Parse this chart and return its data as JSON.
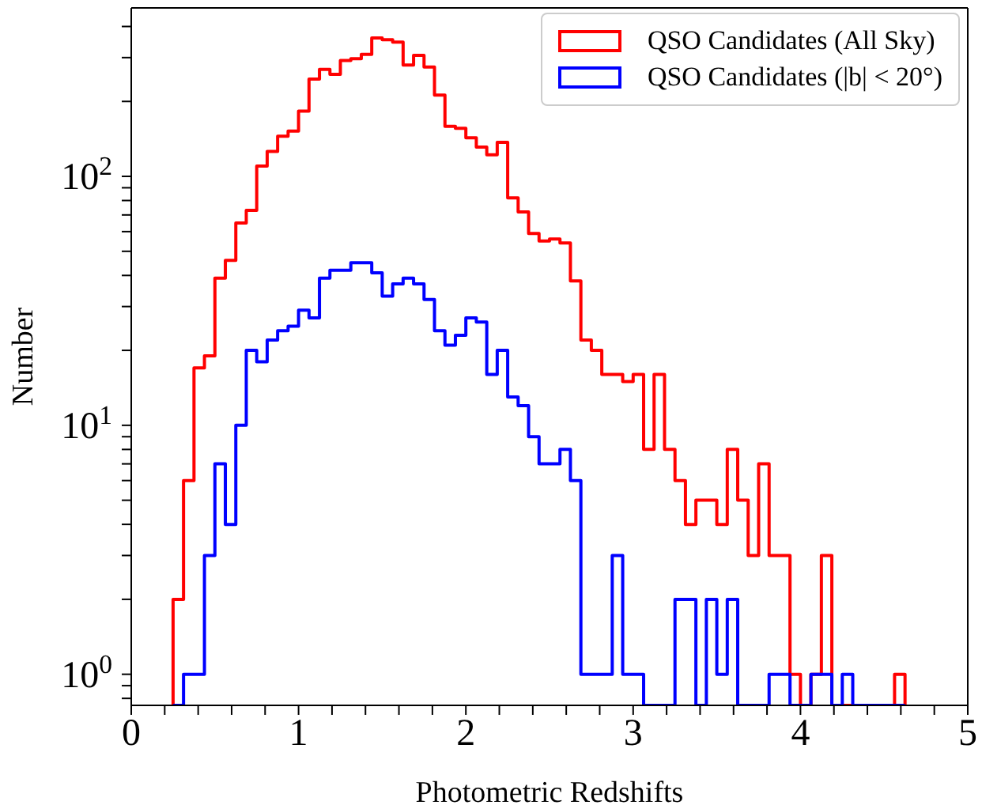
{
  "chart_data": {
    "type": "histogram",
    "xlabel": "Photometric Redshifts",
    "ylabel": "Number",
    "log": "y",
    "bins": [
      0.25,
      0.3125,
      0.375,
      0.4375,
      0.5,
      0.5625,
      0.625,
      0.6875,
      0.75,
      0.8125,
      0.875,
      0.9375,
      1.0,
      1.0625,
      1.125,
      1.1875,
      1.25,
      1.3125,
      1.375,
      1.4375,
      1.5,
      1.5625,
      1.625,
      1.6875,
      1.75,
      1.8125,
      1.875,
      1.9375,
      2.0,
      2.0625,
      2.125,
      2.1875,
      2.25,
      2.3125,
      2.375,
      2.4375,
      2.5,
      2.5625,
      2.625,
      2.6875,
      2.75,
      2.8125,
      2.875,
      2.9375,
      3.0,
      3.0625,
      3.125,
      3.1875,
      3.25,
      3.3125,
      3.375,
      3.4375,
      3.5,
      3.5625,
      3.625,
      3.6875,
      3.75,
      3.8125,
      3.875,
      3.9375,
      4.0,
      4.0625,
      4.125,
      4.1875,
      4.25,
      4.3125,
      4.375,
      4.4375,
      4.5,
      4.5625,
      4.625
    ],
    "series": [
      {
        "name": "QSO Candidates (All Sky)",
        "color": "#ff0000",
        "values": [
          2,
          6,
          17,
          19,
          39,
          46,
          65,
          73,
          110,
          126,
          145,
          152,
          183,
          246,
          269,
          257,
          292,
          297,
          309,
          360,
          354,
          346,
          280,
          306,
          275,
          212,
          159,
          156,
          143,
          131,
          122,
          137,
          82,
          72,
          59,
          55,
          56,
          54,
          38,
          22,
          20,
          16,
          16,
          15,
          16,
          8,
          16,
          8,
          6,
          4,
          5,
          5,
          4,
          8,
          5,
          3,
          7,
          3,
          3,
          1,
          null,
          1,
          3,
          null,
          null,
          null,
          null,
          null,
          null,
          1
        ]
      },
      {
        "name": "QSO Candidates (|b| < 20°)",
        "color": "#0000ff",
        "values": [
          null,
          1,
          1,
          3,
          7,
          4,
          10,
          20,
          18,
          22,
          24,
          25,
          29,
          27,
          39,
          42,
          42,
          45,
          45,
          41,
          33,
          37,
          39,
          37,
          32,
          24,
          21,
          23,
          27,
          26,
          16,
          20,
          13,
          12,
          9,
          7,
          7,
          8,
          6,
          1,
          1,
          1,
          3,
          1,
          1,
          null,
          null,
          null,
          2,
          2,
          null,
          2,
          1,
          2,
          null,
          null,
          null,
          1,
          1,
          null,
          null,
          1,
          1,
          null,
          1,
          null,
          null,
          null,
          null,
          null
        ]
      }
    ],
    "xlim": [
      0,
      5
    ],
    "xticks": [
      0,
      {
        "value": 0.2,
        "label": null
      },
      {
        "value": 0.4,
        "label": null
      },
      {
        "value": 0.6,
        "label": null
      },
      {
        "value": 0.8,
        "label": null
      },
      1,
      {
        "value": 1.2,
        "label": null
      },
      {
        "value": 1.4,
        "label": null
      },
      {
        "value": 1.6,
        "label": null
      },
      {
        "value": 1.8,
        "label": null
      },
      2,
      {
        "value": 2.2,
        "label": null
      },
      {
        "value": 2.4,
        "label": null
      },
      {
        "value": 2.6,
        "label": null
      },
      {
        "value": 2.8,
        "label": null
      },
      3,
      {
        "value": 3.2,
        "label": null
      },
      {
        "value": 3.4,
        "label": null
      },
      {
        "value": 3.6,
        "label": null
      },
      {
        "value": 3.8,
        "label": null
      },
      4,
      {
        "value": 4.2,
        "label": null
      },
      {
        "value": 4.4,
        "label": null
      },
      {
        "value": 4.6,
        "label": null
      },
      {
        "value": 4.8,
        "label": null
      },
      5
    ],
    "ylim": [
      0.75,
      475
    ],
    "yticks": [
      {
        "value": 0.8,
        "label": null
      },
      {
        "value": 0.9,
        "label": null
      },
      {
        "value": 1,
        "label": "10$^{0}$"
      },
      {
        "value": 2,
        "label": null
      },
      {
        "value": 3,
        "label": null
      },
      {
        "value": 4,
        "label": null
      },
      {
        "value": 5,
        "label": null
      },
      {
        "value": 6,
        "label": null
      },
      {
        "value": 7,
        "label": null
      },
      {
        "value": 8,
        "label": null
      },
      {
        "value": 9,
        "label": null
      },
      {
        "value": 10,
        "label": "10$^{1}$"
      },
      {
        "value": 20,
        "label": null
      },
      {
        "value": 30,
        "label": null
      },
      {
        "value": 40,
        "label": null
      },
      {
        "value": 50,
        "label": null
      },
      {
        "value": 60,
        "label": null
      },
      {
        "value": 70,
        "label": null
      },
      {
        "value": 80,
        "label": null
      },
      {
        "value": 90,
        "label": null
      },
      {
        "value": 100,
        "label": "10$^{2}$"
      },
      {
        "value": 200,
        "label": null
      },
      {
        "value": 300,
        "label": null
      },
      {
        "value": 400,
        "label": null
      }
    ],
    "grid": false,
    "legend": "top right",
    "line_style": "solid",
    "marker": "none"
  }
}
